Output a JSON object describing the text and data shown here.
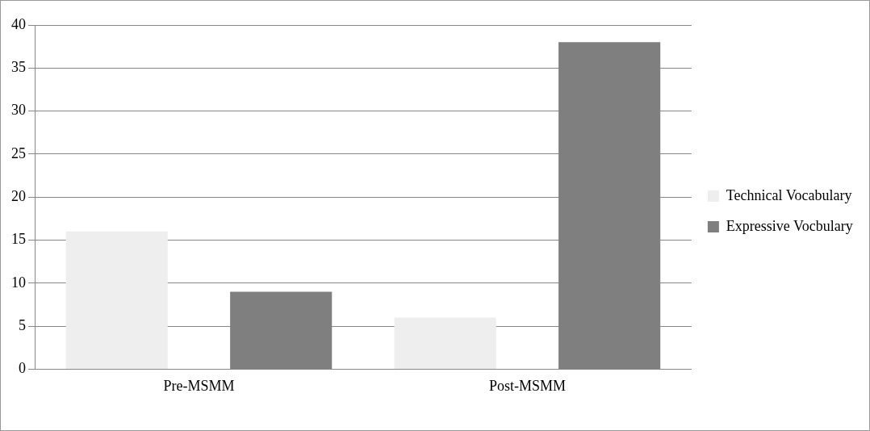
{
  "chart_data": {
    "type": "bar",
    "categories": [
      "Pre-MSMM",
      "Post-MSMM"
    ],
    "series": [
      {
        "name": "Technical Vocabulary",
        "color": "#eeeeee",
        "values": [
          16,
          6
        ]
      },
      {
        "name": "Expressive Vocbulary",
        "color": "#7f7f7f",
        "values": [
          9,
          38
        ]
      }
    ],
    "ylim": [
      0,
      40
    ],
    "yticks": [
      0,
      5,
      10,
      15,
      20,
      25,
      30,
      35,
      40
    ],
    "grid": "y",
    "legend": "right"
  }
}
